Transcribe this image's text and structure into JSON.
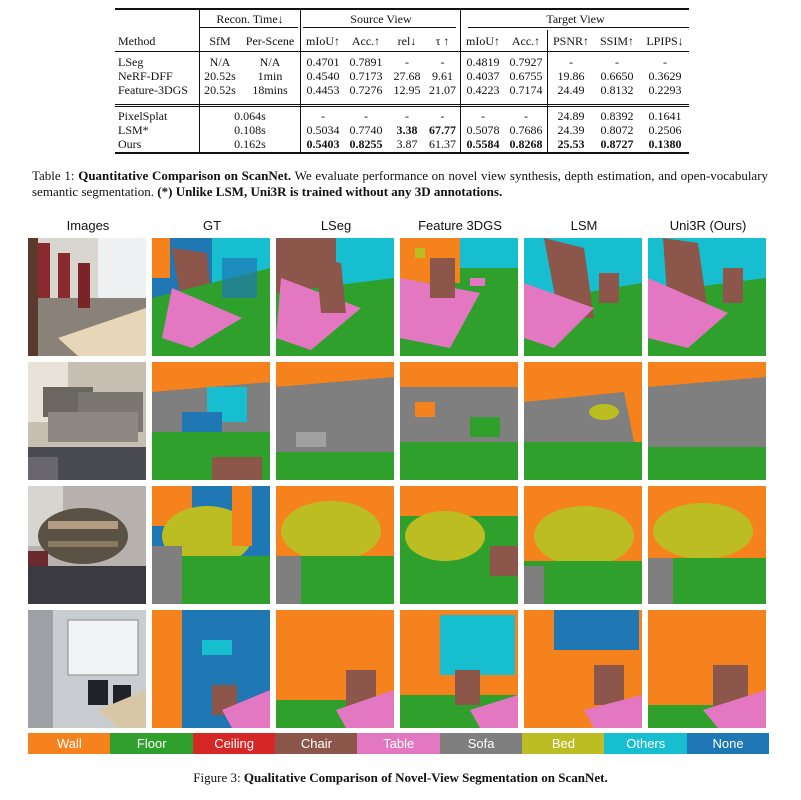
{
  "table": {
    "group_headers": {
      "recon_time": "Recon. Time↓",
      "source_view": "Source View",
      "target_view": "Target View"
    },
    "columns": [
      "Method",
      "SfM",
      "Per-Scene",
      "mIoU↑",
      "Acc.↑",
      "rel↓",
      "τ ↑",
      "mIoU↑",
      "Acc.↑",
      "PSNR↑",
      "SSIM↑",
      "LPIPS↓"
    ],
    "rows_group1": [
      {
        "method": "LSeg",
        "sfm": "N/A",
        "perscene": "N/A",
        "src_miou": "0.4701",
        "src_acc": "0.7891",
        "rel": "-",
        "tau": "-",
        "tgt_miou": "0.4819",
        "tgt_acc": "0.7927",
        "psnr": "-",
        "ssim": "-",
        "lpips": "-"
      },
      {
        "method": "NeRF-DFF",
        "sfm": "20.52s",
        "perscene": "1min",
        "src_miou": "0.4540",
        "src_acc": "0.7173",
        "rel": "27.68",
        "tau": "9.61",
        "tgt_miou": "0.4037",
        "tgt_acc": "0.6755",
        "psnr": "19.86",
        "ssim": "0.6650",
        "lpips": "0.3629"
      },
      {
        "method": "Feature-3DGS",
        "sfm": "20.52s",
        "perscene": "18mins",
        "src_miou": "0.4453",
        "src_acc": "0.7276",
        "rel": "12.95",
        "tau": "21.07",
        "tgt_miou": "0.4223",
        "tgt_acc": "0.7174",
        "psnr": "24.49",
        "ssim": "0.8132",
        "lpips": "0.2293"
      }
    ],
    "rows_group2": [
      {
        "method": "PixelSplat",
        "time": "0.064s",
        "src_miou": "-",
        "src_acc": "-",
        "rel": "-",
        "tau": "-",
        "tgt_miou": "-",
        "tgt_acc": "-",
        "psnr": "24.89",
        "ssim": "0.8392",
        "lpips": "0.1641"
      },
      {
        "method": "LSM*",
        "time": "0.108s",
        "src_miou": "0.5034",
        "src_acc": "0.7740",
        "rel": "3.38",
        "tau": "67.77",
        "tgt_miou": "0.5078",
        "tgt_acc": "0.7686",
        "psnr": "24.39",
        "ssim": "0.8072",
        "lpips": "0.2506"
      },
      {
        "method": "Ours",
        "time": "0.162s",
        "src_miou": "0.5403",
        "src_acc": "0.8255",
        "rel": "3.87",
        "tau": "61.37",
        "tgt_miou": "0.5584",
        "tgt_acc": "0.8268",
        "psnr": "25.53",
        "ssim": "0.8727",
        "lpips": "0.1380"
      }
    ]
  },
  "table_caption": {
    "label": "Table 1:",
    "title": "Quantitative Comparison on ScanNet.",
    "text": "We evaluate performance on novel view synthesis, depth estimation, and open-vocabulary semantic segmentation.",
    "note": "(*) Unlike LSM, Uni3R is trained without any 3D annotations."
  },
  "figure": {
    "columns": [
      "Images",
      "GT",
      "LSeg",
      "Feature 3DGS",
      "LSM",
      "Uni3R (Ours)"
    ],
    "legend": [
      {
        "label": "Wall",
        "color": "#f6821e"
      },
      {
        "label": "Floor",
        "color": "#2fa02c"
      },
      {
        "label": "Ceiling",
        "color": "#d62727"
      },
      {
        "label": "Chair",
        "color": "#8c564b"
      },
      {
        "label": "Table",
        "color": "#e377c2"
      },
      {
        "label": "Sofa",
        "color": "#7f7f7f"
      },
      {
        "label": "Bed",
        "color": "#bcbd22"
      },
      {
        "label": "Others",
        "color": "#17becf"
      },
      {
        "label": "None",
        "color": "#1f77b4"
      }
    ],
    "caption_label": "Figure 3:",
    "caption_title": "Qualitative Comparison of Novel-View Segmentation on ScanNet."
  }
}
